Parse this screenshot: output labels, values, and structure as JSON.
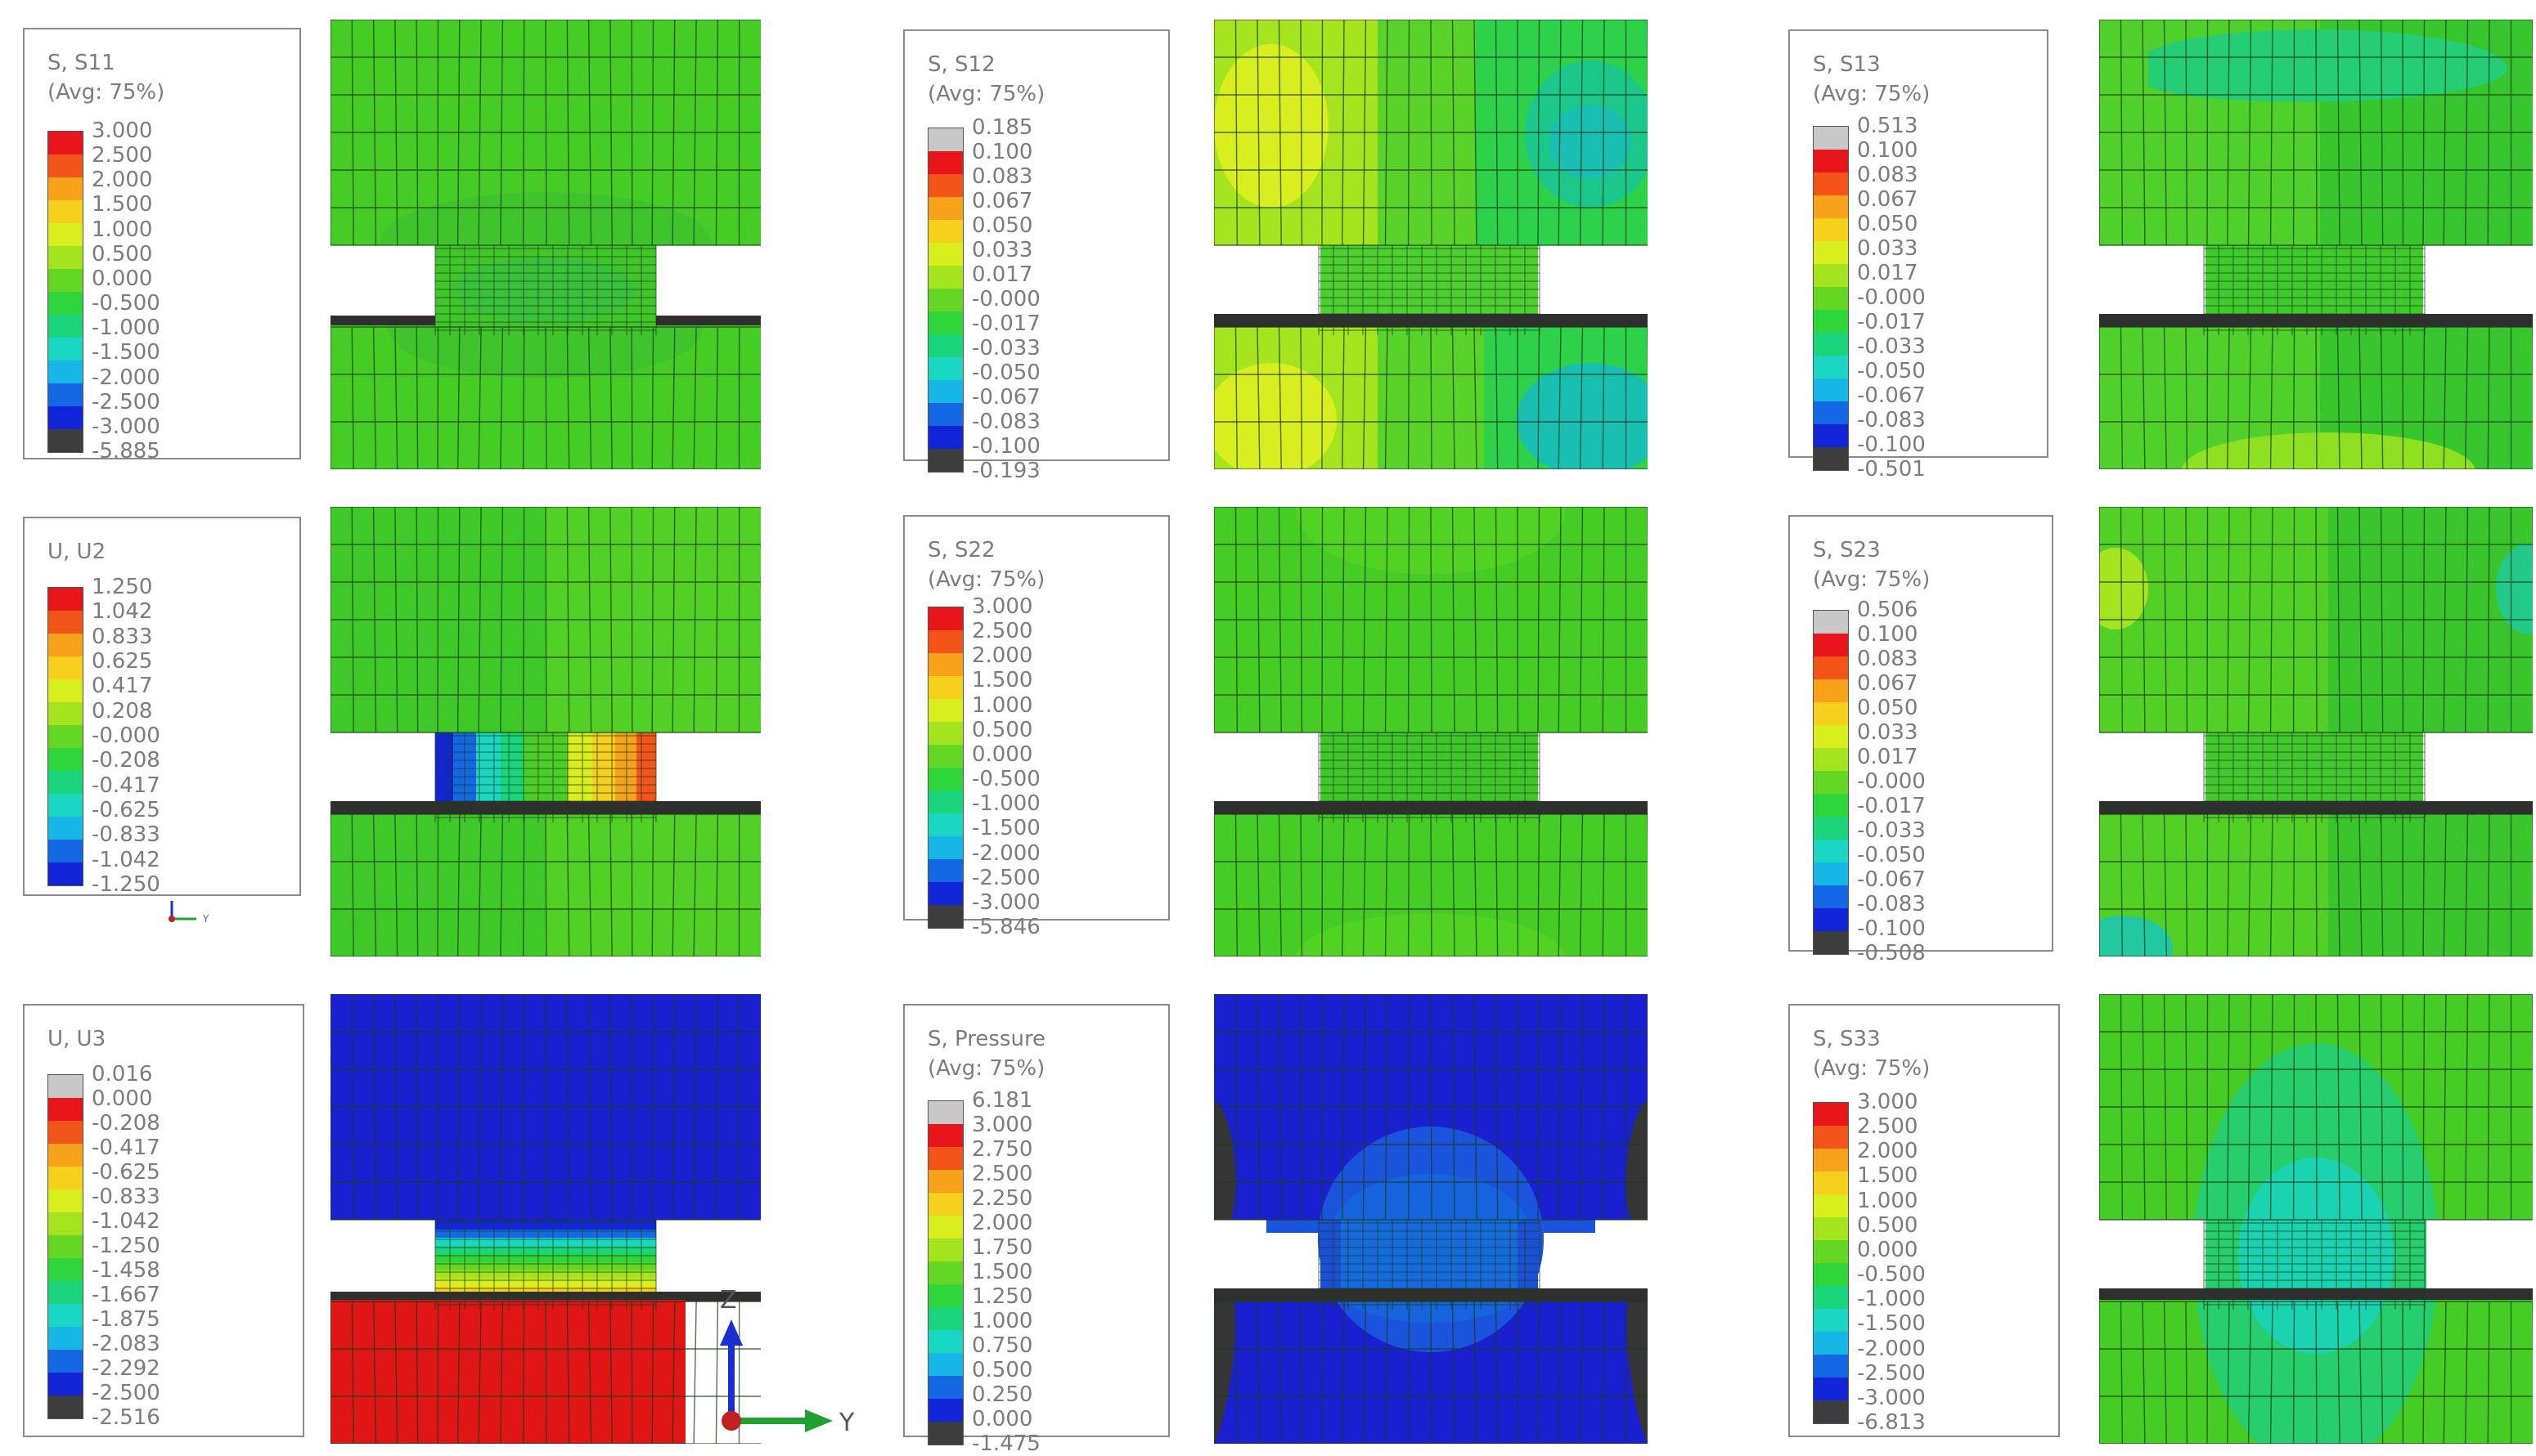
{
  "legends": [
    {
      "id": "s11",
      "title": "S, S11",
      "subtitle": "(Avg: 75%)",
      "values": [
        "3.000",
        "2.500",
        "2.000",
        "1.500",
        "1.000",
        "0.500",
        "0.000",
        "-0.500",
        "-1.000",
        "-1.500",
        "-2.000",
        "-2.500",
        "-3.000",
        "-5.885"
      ],
      "colors": [
        "#e8161b",
        "#f3541a",
        "#f8a21b",
        "#f6d01c",
        "#d9ef1d",
        "#a4e41f",
        "#63d724",
        "#2ed63b",
        "#1bd57c",
        "#19d7c2",
        "#16b6e7",
        "#1568e3",
        "#1224d8",
        "#3d3d3d"
      ]
    },
    {
      "id": "s12",
      "title": "S, S12",
      "subtitle": "(Avg: 75%)",
      "values": [
        "0.185",
        "0.100",
        "0.083",
        "0.067",
        "0.050",
        "0.033",
        "0.017",
        "-0.000",
        "-0.017",
        "-0.033",
        "-0.050",
        "-0.067",
        "-0.083",
        "-0.100",
        "-0.193"
      ],
      "colors": [
        "#c8c8c8",
        "#e8161b",
        "#f3541a",
        "#f8a21b",
        "#f6d01c",
        "#d9ef1d",
        "#a4e41f",
        "#63d724",
        "#2ed63b",
        "#1bd57c",
        "#19d7c2",
        "#16b6e7",
        "#1568e3",
        "#1224d8",
        "#3d3d3d"
      ]
    },
    {
      "id": "s13",
      "title": "S, S13",
      "subtitle": "(Avg: 75%)",
      "values": [
        "0.513",
        "0.100",
        "0.083",
        "0.067",
        "0.050",
        "0.033",
        "0.017",
        "-0.000",
        "-0.017",
        "-0.033",
        "-0.050",
        "-0.067",
        "-0.083",
        "-0.100",
        "-0.501"
      ],
      "colors": [
        "#c8c8c8",
        "#e8161b",
        "#f3541a",
        "#f8a21b",
        "#f6d01c",
        "#d9ef1d",
        "#a4e41f",
        "#63d724",
        "#2ed63b",
        "#1bd57c",
        "#19d7c2",
        "#16b6e7",
        "#1568e3",
        "#1224d8",
        "#3d3d3d"
      ]
    },
    {
      "id": "u2",
      "title": "U, U2",
      "subtitle": "",
      "values": [
        "1.250",
        "1.042",
        "0.833",
        "0.625",
        "0.417",
        "0.208",
        "-0.000",
        "-0.208",
        "-0.417",
        "-0.625",
        "-0.833",
        "-1.042",
        "-1.250"
      ],
      "colors": [
        "#e8161b",
        "#f3541a",
        "#f8a21b",
        "#f6d01c",
        "#d9ef1d",
        "#a4e41f",
        "#63d724",
        "#2ed63b",
        "#1bd57c",
        "#19d7c2",
        "#16b6e7",
        "#1568e3",
        "#1224d8"
      ]
    },
    {
      "id": "s22",
      "title": "S, S22",
      "subtitle": "(Avg: 75%)",
      "values": [
        "3.000",
        "2.500",
        "2.000",
        "1.500",
        "1.000",
        "0.500",
        "0.000",
        "-0.500",
        "-1.000",
        "-1.500",
        "-2.000",
        "-2.500",
        "-3.000",
        "-5.846"
      ],
      "colors": [
        "#e8161b",
        "#f3541a",
        "#f8a21b",
        "#f6d01c",
        "#d9ef1d",
        "#a4e41f",
        "#63d724",
        "#2ed63b",
        "#1bd57c",
        "#19d7c2",
        "#16b6e7",
        "#1568e3",
        "#1224d8",
        "#3d3d3d"
      ]
    },
    {
      "id": "s23",
      "title": "S, S23",
      "subtitle": "(Avg: 75%)",
      "values": [
        "0.506",
        "0.100",
        "0.083",
        "0.067",
        "0.050",
        "0.033",
        "0.017",
        "-0.000",
        "-0.017",
        "-0.033",
        "-0.050",
        "-0.067",
        "-0.083",
        "-0.100",
        "-0.508"
      ],
      "colors": [
        "#c8c8c8",
        "#e8161b",
        "#f3541a",
        "#f8a21b",
        "#f6d01c",
        "#d9ef1d",
        "#a4e41f",
        "#63d724",
        "#2ed63b",
        "#1bd57c",
        "#19d7c2",
        "#16b6e7",
        "#1568e3",
        "#1224d8",
        "#3d3d3d"
      ]
    },
    {
      "id": "u3",
      "title": "U, U3",
      "subtitle": "",
      "values": [
        "0.016",
        "0.000",
        "-0.208",
        "-0.417",
        "-0.625",
        "-0.833",
        "-1.042",
        "-1.250",
        "-1.458",
        "-1.667",
        "-1.875",
        "-2.083",
        "-2.292",
        "-2.500",
        "-2.516"
      ],
      "colors": [
        "#c8c8c8",
        "#e8161b",
        "#f3541a",
        "#f8a21b",
        "#f6d01c",
        "#d9ef1d",
        "#a4e41f",
        "#63d724",
        "#2ed63b",
        "#1bd57c",
        "#19d7c2",
        "#16b6e7",
        "#1568e3",
        "#1224d8",
        "#3d3d3d"
      ]
    },
    {
      "id": "pressure",
      "title": "S, Pressure",
      "subtitle": "(Avg: 75%)",
      "values": [
        "6.181",
        "3.000",
        "2.750",
        "2.500",
        "2.250",
        "2.000",
        "1.750",
        "1.500",
        "1.250",
        "1.000",
        "0.750",
        "0.500",
        "0.250",
        "0.000",
        "-1.475"
      ],
      "colors": [
        "#c8c8c8",
        "#e8161b",
        "#f3541a",
        "#f8a21b",
        "#f6d01c",
        "#d9ef1d",
        "#a4e41f",
        "#63d724",
        "#2ed63b",
        "#1bd57c",
        "#19d7c2",
        "#16b6e7",
        "#1568e3",
        "#1224d8",
        "#3d3d3d"
      ]
    },
    {
      "id": "s33",
      "title": "S, S33",
      "subtitle": "(Avg: 75%)",
      "values": [
        "3.000",
        "2.500",
        "2.000",
        "1.500",
        "1.000",
        "0.500",
        "0.000",
        "-0.500",
        "-1.000",
        "-1.500",
        "-2.000",
        "-2.500",
        "-3.000",
        "-6.813"
      ],
      "colors": [
        "#e8161b",
        "#f3541a",
        "#f8a21b",
        "#f6d01c",
        "#d9ef1d",
        "#a4e41f",
        "#63d724",
        "#2ed63b",
        "#1bd57c",
        "#19d7c2",
        "#16b6e7",
        "#1568e3",
        "#1224d8",
        "#3d3d3d"
      ]
    }
  ],
  "axis": {
    "z_label": "Z",
    "y_label": "Y"
  },
  "colors": {
    "base_green": "#45cc25",
    "dark_green": "#38c225",
    "mesh": "#1b4a1b",
    "blue": "#1a1fd0",
    "red": "#e01515"
  }
}
